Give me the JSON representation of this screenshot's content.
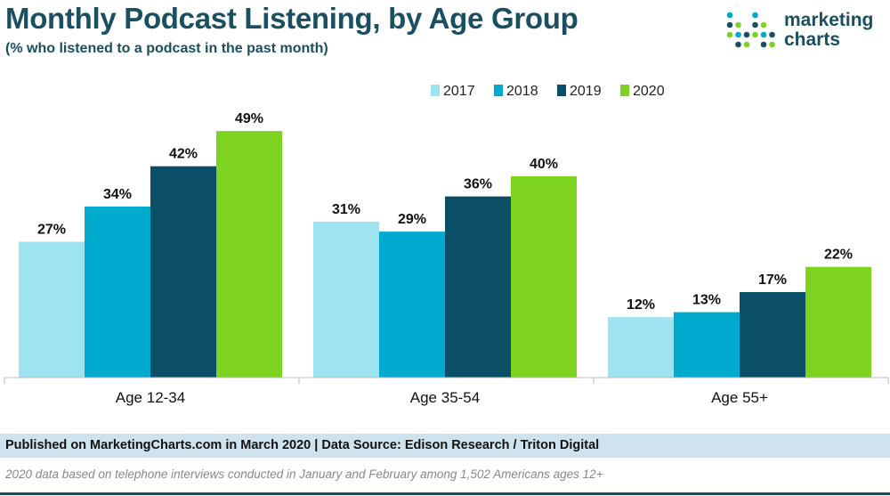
{
  "header": {
    "title": "Monthly Podcast Listening, by Age Group",
    "subtitle": "(% who listened to a podcast in the past month)"
  },
  "logo": {
    "line1": "marketing",
    "line2": "charts",
    "dot_colors": [
      "#00a9ce",
      "#1a4f61",
      "#7ed321"
    ]
  },
  "chart_data": {
    "type": "bar",
    "categories": [
      "Age 12-34",
      "Age 35-54",
      "Age 55+"
    ],
    "series": [
      {
        "name": "2017",
        "color": "#9ee4f0",
        "values": [
          27,
          31,
          12
        ],
        "labels": [
          "27%",
          "31%",
          "12%"
        ]
      },
      {
        "name": "2018",
        "color": "#00a9ce",
        "values": [
          34,
          29,
          13
        ],
        "labels": [
          "34%",
          "29%",
          "13%"
        ]
      },
      {
        "name": "2019",
        "color": "#0b4f66",
        "values": [
          42,
          36,
          17
        ],
        "labels": [
          "42%",
          "36%",
          "17%"
        ]
      },
      {
        "name": "2020",
        "color": "#7ed321",
        "values": [
          49,
          40,
          22
        ],
        "labels": [
          "49%",
          "40%",
          "22%"
        ]
      }
    ],
    "ylim": [
      0,
      55
    ],
    "grid": false,
    "legend_position": "top-right"
  },
  "footer": {
    "published": "Published on MarketingCharts.com in March 2020 | Data Source: Edison Research / Triton Digital",
    "note": "2020 data based on telephone interviews conducted in January and February among 1,502 Americans ages 12+"
  }
}
